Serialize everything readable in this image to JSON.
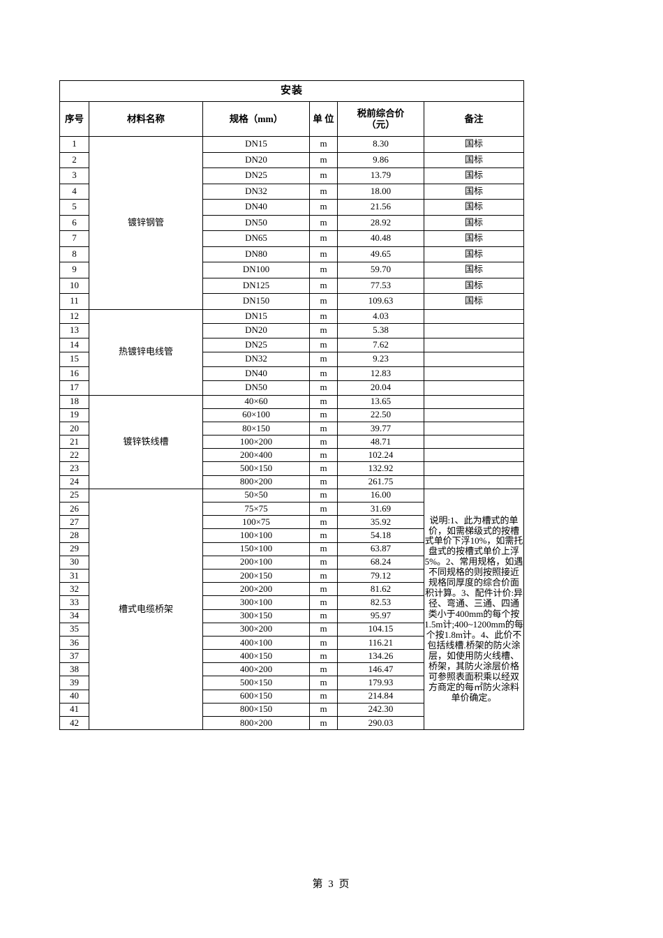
{
  "page": {
    "footer": "第 3 页"
  },
  "table": {
    "title": "安装",
    "headers": {
      "no": "序号",
      "material": "材料名称",
      "spec": "规格（mm）",
      "unit": "单 位",
      "price": "税前综合价\n（元）",
      "remark": "备注"
    },
    "groups": [
      {
        "material": "镀锌钢管",
        "rows": [
          {
            "no": "1",
            "spec": "DN15",
            "unit": "m",
            "price": "8.30",
            "remark": "国标"
          },
          {
            "no": "2",
            "spec": "DN20",
            "unit": "m",
            "price": "9.86",
            "remark": "国标"
          },
          {
            "no": "3",
            "spec": "DN25",
            "unit": "m",
            "price": "13.79",
            "remark": "国标"
          },
          {
            "no": "4",
            "spec": "DN32",
            "unit": "m",
            "price": "18.00",
            "remark": "国标"
          },
          {
            "no": "5",
            "spec": "DN40",
            "unit": "m",
            "price": "21.56",
            "remark": "国标"
          },
          {
            "no": "6",
            "spec": "DN50",
            "unit": "m",
            "price": "28.92",
            "remark": "国标"
          },
          {
            "no": "7",
            "spec": "DN65",
            "unit": "m",
            "price": "40.48",
            "remark": "国标"
          },
          {
            "no": "8",
            "spec": "DN80",
            "unit": "m",
            "price": "49.65",
            "remark": "国标"
          },
          {
            "no": "9",
            "spec": "DN100",
            "unit": "m",
            "price": "59.70",
            "remark": "国标"
          },
          {
            "no": "10",
            "spec": "DN125",
            "unit": "m",
            "price": "77.53",
            "remark": "国标"
          },
          {
            "no": "11",
            "spec": "DN150",
            "unit": "m",
            "price": "109.63",
            "remark": "国标"
          }
        ]
      },
      {
        "material": "热镀锌电线管",
        "rows": [
          {
            "no": "12",
            "spec": "DN15",
            "unit": "m",
            "price": "4.03",
            "remark": ""
          },
          {
            "no": "13",
            "spec": "DN20",
            "unit": "m",
            "price": "5.38",
            "remark": ""
          },
          {
            "no": "14",
            "spec": "DN25",
            "unit": "m",
            "price": "7.62",
            "remark": ""
          },
          {
            "no": "15",
            "spec": "DN32",
            "unit": "m",
            "price": "9.23",
            "remark": ""
          },
          {
            "no": "16",
            "spec": "DN40",
            "unit": "m",
            "price": "12.83",
            "remark": ""
          },
          {
            "no": "17",
            "spec": "DN50",
            "unit": "m",
            "price": "20.04",
            "remark": ""
          }
        ]
      },
      {
        "material": "镀锌铁线槽",
        "rows": [
          {
            "no": "18",
            "spec": "40×60",
            "unit": "m",
            "price": "13.65",
            "remark": ""
          },
          {
            "no": "19",
            "spec": "60×100",
            "unit": "m",
            "price": "22.50",
            "remark": ""
          },
          {
            "no": "20",
            "spec": "80×150",
            "unit": "m",
            "price": "39.77",
            "remark": ""
          },
          {
            "no": "21",
            "spec": "100×200",
            "unit": "m",
            "price": "48.71",
            "remark": ""
          },
          {
            "no": "22",
            "spec": "200×400",
            "unit": "m",
            "price": "102.24",
            "remark": ""
          },
          {
            "no": "23",
            "spec": "500×150",
            "unit": "m",
            "price": "132.92",
            "remark": ""
          },
          {
            "no": "24",
            "spec": "800×200",
            "unit": "m",
            "price": "261.75",
            "remark": ""
          }
        ]
      },
      {
        "material": "槽式电缆桥架",
        "merged_remark": "说明:1、此为槽式的单价，如需梯级式的按槽式单价下浮10%，如需托盘式的按槽式单价上浮5%。2、常用规格，如遇不同规格的则按照接近规格同厚度的综合价面积计算。3、配件计价:异径、弯通、三通、四通类小于400mm的每个按1.5m计;400~1200mm的每个按1.8m计。4、此价不包括线槽.桥架的防火涂层，如使用防火线槽、桥架，其防火涂层价格可参照表面积乘以经双方商定的每㎡防火涂料单价确定。",
        "rows": [
          {
            "no": "25",
            "spec": "50×50",
            "unit": "m",
            "price": "16.00"
          },
          {
            "no": "26",
            "spec": "75×75",
            "unit": "m",
            "price": "31.69"
          },
          {
            "no": "27",
            "spec": "100×75",
            "unit": "m",
            "price": "35.92"
          },
          {
            "no": "28",
            "spec": "100×100",
            "unit": "m",
            "price": "54.18"
          },
          {
            "no": "29",
            "spec": "150×100",
            "unit": "m",
            "price": "63.87"
          },
          {
            "no": "30",
            "spec": "200×100",
            "unit": "m",
            "price": "68.24"
          },
          {
            "no": "31",
            "spec": "200×150",
            "unit": "m",
            "price": "79.12"
          },
          {
            "no": "32",
            "spec": "200×200",
            "unit": "m",
            "price": "81.62"
          },
          {
            "no": "33",
            "spec": "300×100",
            "unit": "m",
            "price": "82.53"
          },
          {
            "no": "34",
            "spec": "300×150",
            "unit": "m",
            "price": "95.97"
          },
          {
            "no": "35",
            "spec": "300×200",
            "unit": "m",
            "price": "104.15"
          },
          {
            "no": "36",
            "spec": "400×100",
            "unit": "m",
            "price": "116.21"
          },
          {
            "no": "37",
            "spec": "400×150",
            "unit": "m",
            "price": "134.26"
          },
          {
            "no": "38",
            "spec": "400×200",
            "unit": "m",
            "price": "146.47"
          },
          {
            "no": "39",
            "spec": "500×150",
            "unit": "m",
            "price": "179.93"
          },
          {
            "no": "40",
            "spec": "600×150",
            "unit": "m",
            "price": "214.84"
          },
          {
            "no": "41",
            "spec": "800×150",
            "unit": "m",
            "price": "242.30"
          },
          {
            "no": "42",
            "spec": "800×200",
            "unit": "m",
            "price": "290.03"
          }
        ]
      }
    ]
  }
}
